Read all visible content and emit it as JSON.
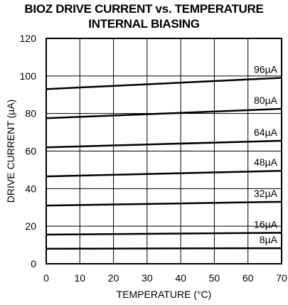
{
  "chart_data": {
    "type": "line",
    "title": "BIOZ DRIVE CURRENT vs. TEMPERATURE",
    "subtitle": "INTERNAL BIASING",
    "xlabel": "TEMPERATURE (°C)",
    "ylabel": "DRIVE CURRENT (µA)",
    "xlim": [
      0,
      70
    ],
    "ylim": [
      0,
      120
    ],
    "xticks": [
      0,
      10,
      20,
      30,
      40,
      50,
      60,
      70
    ],
    "yticks": [
      0,
      20,
      40,
      60,
      80,
      100,
      120
    ],
    "grid": true,
    "x": [
      0,
      70
    ],
    "series": [
      {
        "name": "96µA",
        "values": [
          93,
          99
        ]
      },
      {
        "name": "80µA",
        "values": [
          77.5,
          82.5
        ]
      },
      {
        "name": "64µA",
        "values": [
          62,
          65.5
        ]
      },
      {
        "name": "48µA",
        "values": [
          46.5,
          49.5
        ]
      },
      {
        "name": "32µA",
        "values": [
          31,
          33
        ]
      },
      {
        "name": "16µA",
        "values": [
          15.5,
          16.5
        ]
      },
      {
        "name": "8µA",
        "values": [
          8,
          8.3
        ]
      }
    ],
    "line_color": "#000000"
  }
}
